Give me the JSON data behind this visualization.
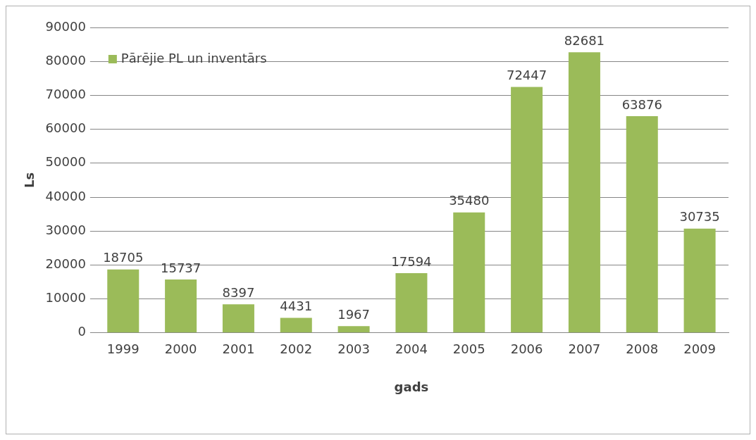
{
  "chart_data": {
    "type": "bar",
    "xlabel": "gads",
    "ylabel": "Ls",
    "categories": [
      "1999",
      "2000",
      "2001",
      "2002",
      "2003",
      "2004",
      "2005",
      "2006",
      "2007",
      "2008",
      "2009"
    ],
    "series": [
      {
        "name": "Pārējie PL un inventārs",
        "color": "#9bbb59",
        "values": [
          18705,
          15737,
          8397,
          4431,
          1967,
          17594,
          35480,
          72447,
          82681,
          63876,
          30735
        ]
      }
    ],
    "ylim": [
      0,
      90000
    ],
    "yticks": [
      0,
      10000,
      20000,
      30000,
      40000,
      50000,
      60000,
      70000,
      80000,
      90000
    ],
    "grid": "y",
    "legend": "top left",
    "data_labels": true
  }
}
